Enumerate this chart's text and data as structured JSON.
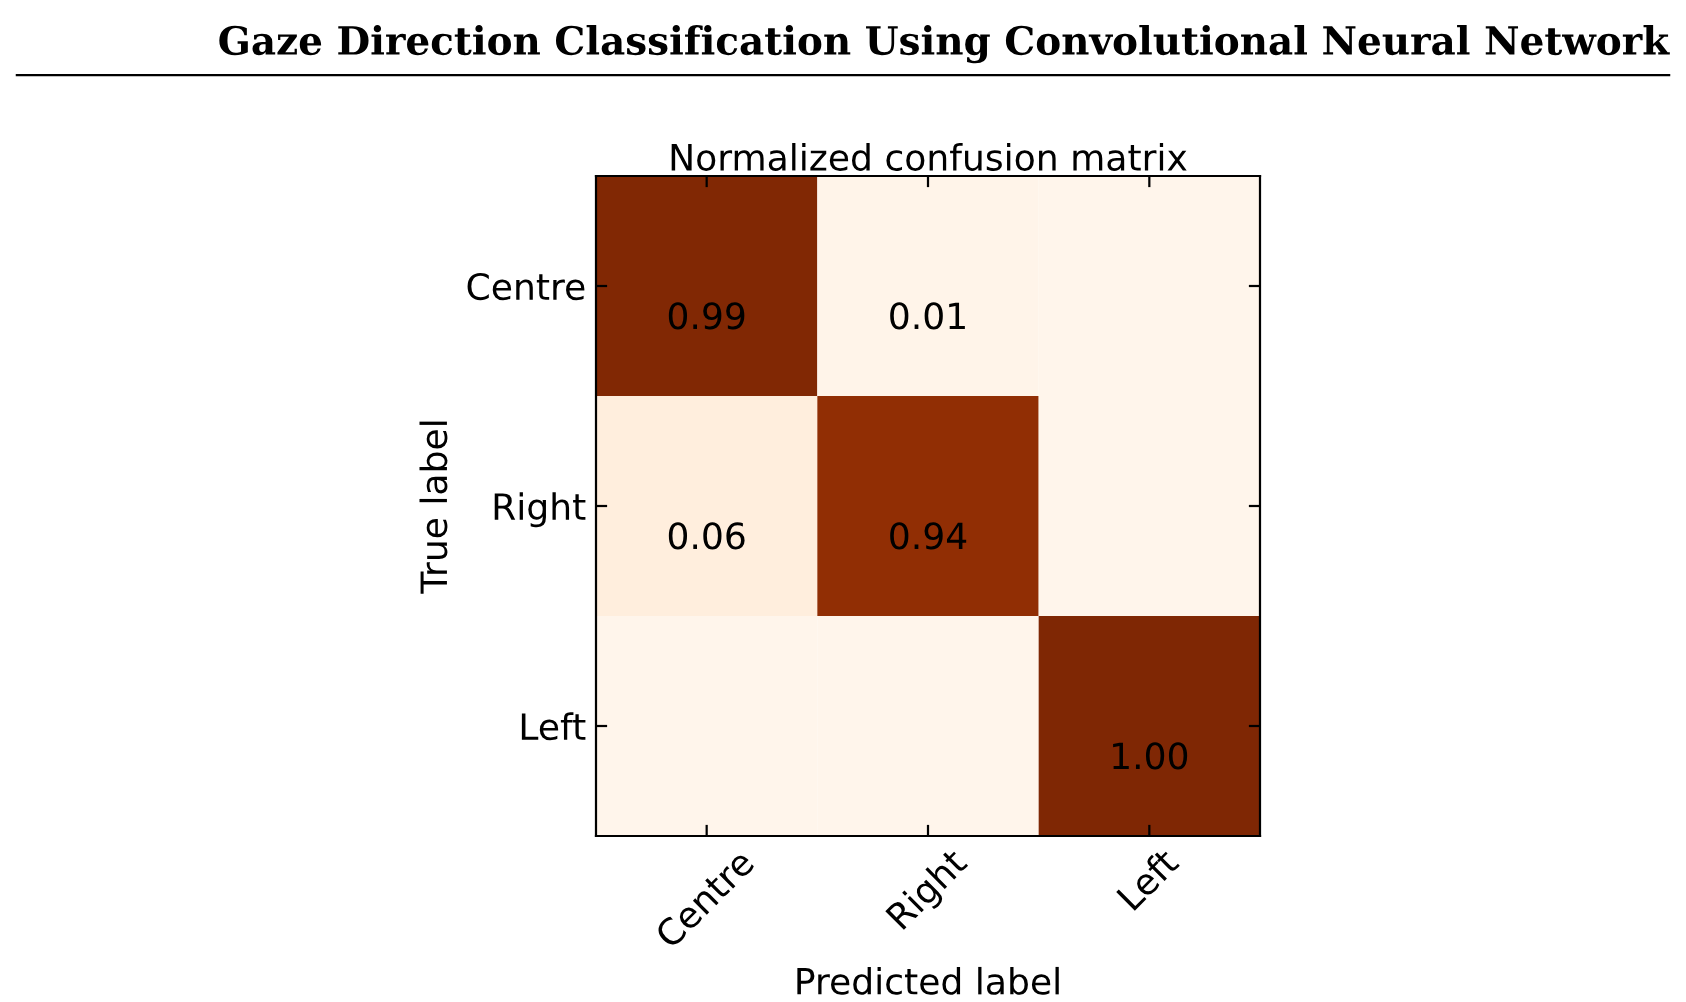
{
  "chart_data": {
    "type": "heatmap",
    "title": "Normalized confusion matrix",
    "xlabel": "Predicted label",
    "ylabel": "True label",
    "categories": [
      "Centre",
      "Right",
      "Left"
    ],
    "y_categories": [
      "Centre",
      "Right",
      "Left"
    ],
    "cells": [
      [
        0.99,
        0.01,
        null
      ],
      [
        0.06,
        0.94,
        null
      ],
      [
        null,
        null,
        1.0
      ]
    ],
    "cell_labels": [
      [
        "0.99",
        "0.01",
        null
      ],
      [
        "0.06",
        "0.94",
        null
      ],
      [
        null,
        null,
        "1.00"
      ]
    ],
    "annotations": [
      "Gaze Direction Classification Using Convolutional Neural Network"
    ]
  }
}
